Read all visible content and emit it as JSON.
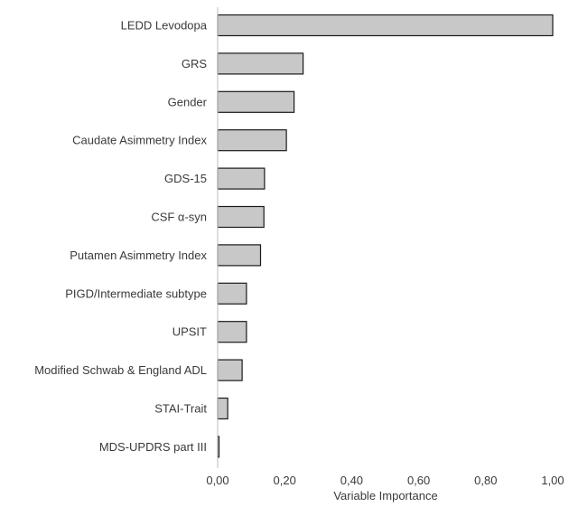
{
  "chart_data": {
    "type": "bar",
    "orientation": "horizontal",
    "categories": [
      "LEDD Levodopa",
      "GRS",
      "Gender",
      "Caudate Asimmetry Index",
      "GDS-15",
      "CSF α-syn",
      "Putamen Asimmetry Index",
      "PIGD/Intermediate subtype",
      "UPSIT",
      "Modified Schwab & England ADL",
      "STAI-Trait",
      "MDS-UPDRS part III"
    ],
    "values": [
      1.0,
      0.255,
      0.228,
      0.205,
      0.14,
      0.138,
      0.128,
      0.086,
      0.086,
      0.073,
      0.03,
      0.004
    ],
    "xlabel": "Variable Importance",
    "ylabel": "",
    "xlim": [
      0,
      1.0
    ],
    "xticks": [
      "0,00",
      "0,20",
      "0,40",
      "0,60",
      "0,80",
      "1,00"
    ],
    "grid": false,
    "colors": {
      "bar_fill": "#c8c8c8",
      "bar_stroke": "#1a1a1a",
      "axis": "#bdbdbd",
      "text": "#3a3a3a"
    }
  }
}
